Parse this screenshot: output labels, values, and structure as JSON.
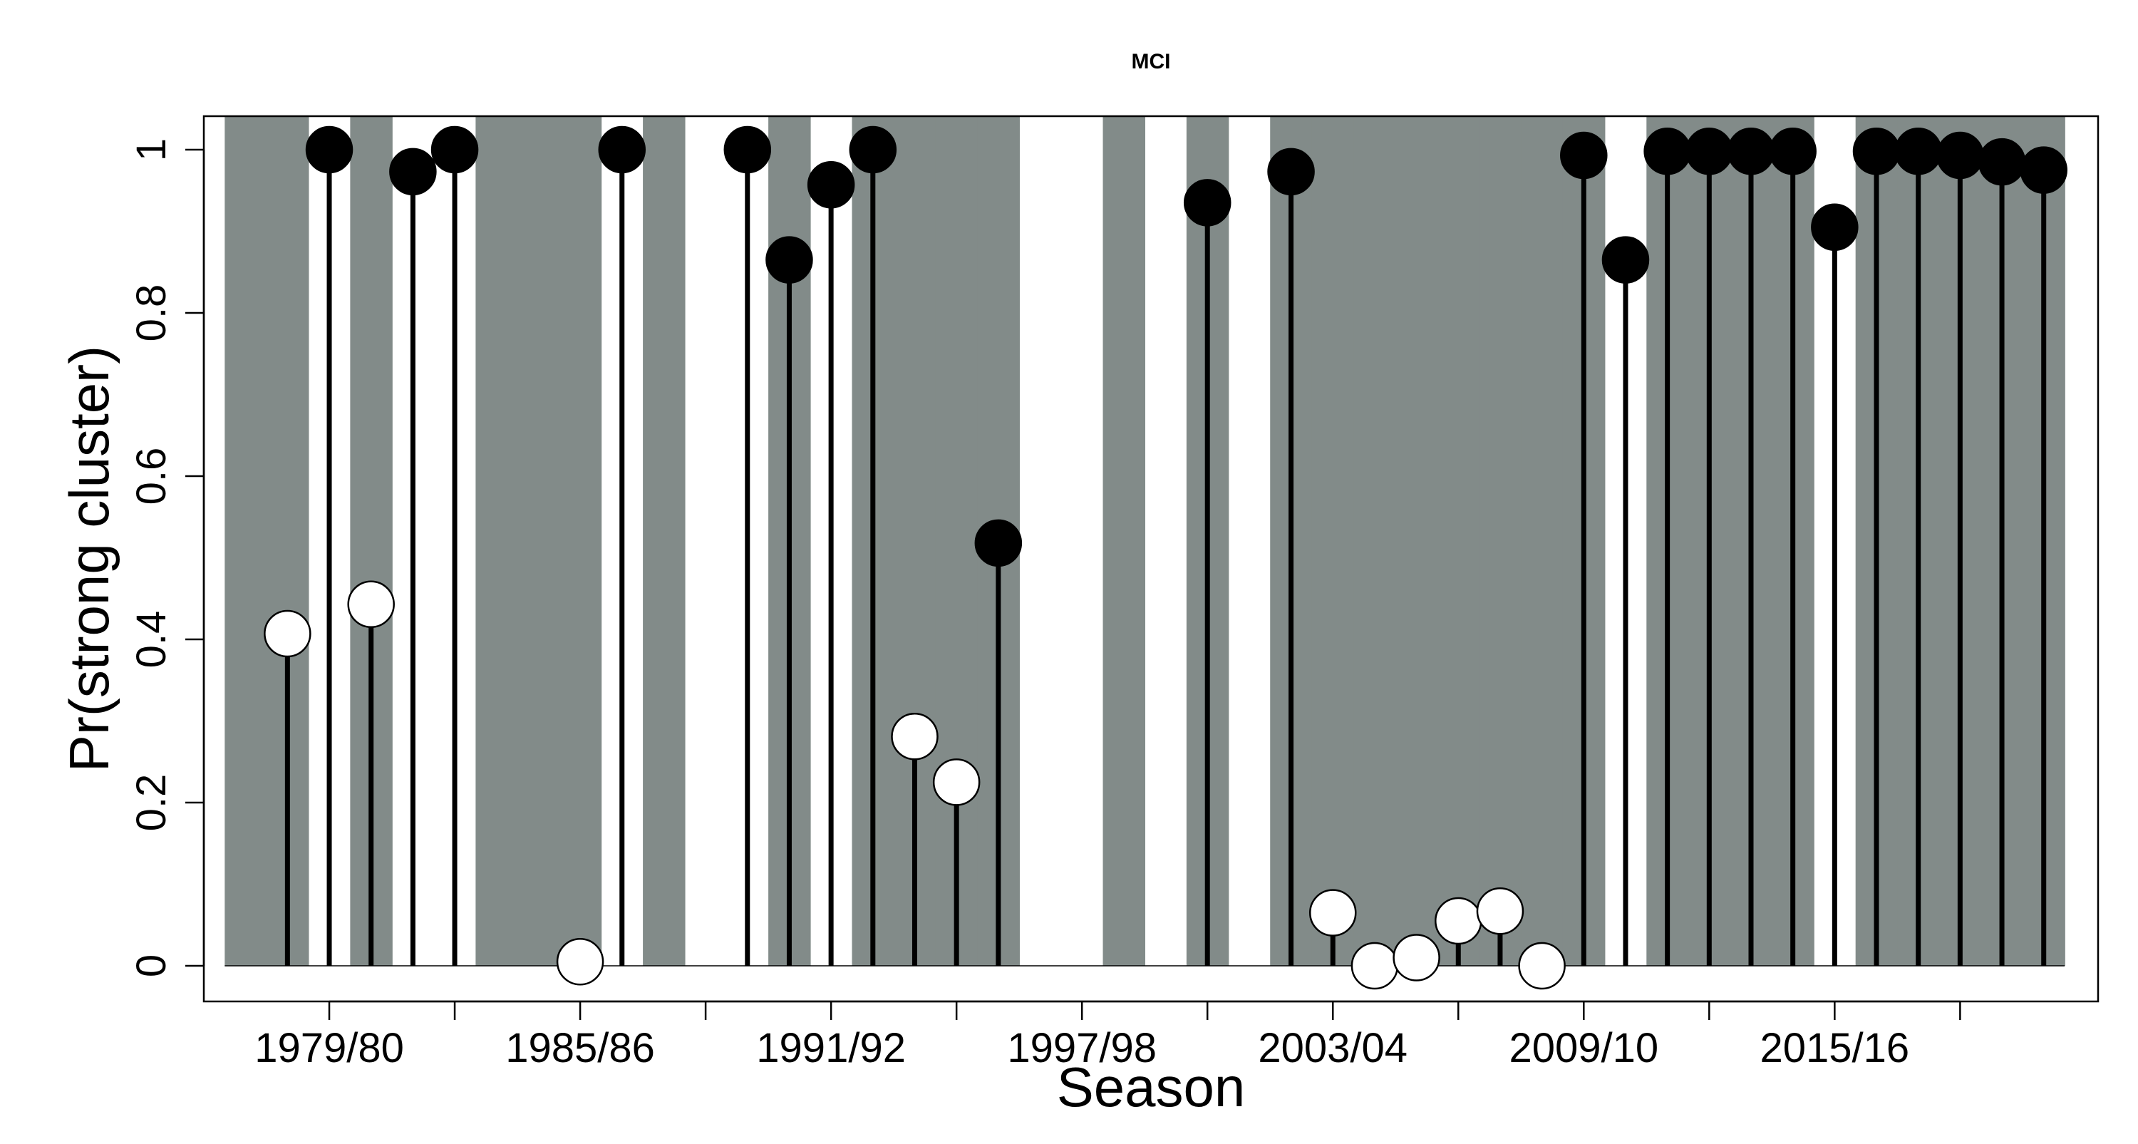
{
  "chart_data": {
    "type": "lollipop",
    "title": "MCI",
    "xlabel": "Season",
    "ylabel": "Pr(strong cluster)",
    "ylim": [
      0,
      1
    ],
    "yticks": [
      {
        "value": 0,
        "label": "0"
      },
      {
        "value": 0.2,
        "label": "0.2"
      },
      {
        "value": 0.4,
        "label": "0.4"
      },
      {
        "value": 0.6,
        "label": "0.6"
      },
      {
        "value": 0.8,
        "label": "0.8"
      },
      {
        "value": 1,
        "label": "1"
      }
    ],
    "xlim": [
      1976,
      2021.3
    ],
    "xticks": [
      {
        "value": 1979,
        "label": "1979/80"
      },
      {
        "value": 1982,
        "label": ""
      },
      {
        "value": 1985,
        "label": "1985/86"
      },
      {
        "value": 1988,
        "label": ""
      },
      {
        "value": 1991,
        "label": "1991/92"
      },
      {
        "value": 1994,
        "label": ""
      },
      {
        "value": 1997,
        "label": "1997/98"
      },
      {
        "value": 2000,
        "label": ""
      },
      {
        "value": 2003,
        "label": "2003/04"
      },
      {
        "value": 2006,
        "label": ""
      },
      {
        "value": 2009,
        "label": "2009/10"
      },
      {
        "value": 2012,
        "label": ""
      },
      {
        "value": 2015,
        "label": "2015/16"
      },
      {
        "value": 2018,
        "label": ""
      }
    ],
    "grid": false,
    "legend": "none",
    "colors": {
      "shade": "#828b89",
      "strong": "#000000",
      "weak": "#ffffff",
      "stem": "#000000"
    },
    "shaded_seasons": [
      1977,
      1978,
      1980,
      1983,
      1984,
      1985,
      1987,
      1990,
      1992,
      1993,
      1994,
      1995,
      1998,
      2000,
      2002,
      2003,
      2004,
      2005,
      2006,
      2007,
      2008,
      2009,
      2011,
      2012,
      2013,
      2014,
      2016,
      2017,
      2018,
      2019,
      2020
    ],
    "points": [
      {
        "season": 1978,
        "value": 0.407,
        "cluster": "weak"
      },
      {
        "season": 1979,
        "value": 1.0,
        "cluster": "strong"
      },
      {
        "season": 1980,
        "value": 0.443,
        "cluster": "weak"
      },
      {
        "season": 1981,
        "value": 0.973,
        "cluster": "strong"
      },
      {
        "season": 1982,
        "value": 1.0,
        "cluster": "strong"
      },
      {
        "season": 1985,
        "value": 0.005,
        "cluster": "weak"
      },
      {
        "season": 1986,
        "value": 1.0,
        "cluster": "strong"
      },
      {
        "season": 1989,
        "value": 1.0,
        "cluster": "strong"
      },
      {
        "season": 1990,
        "value": 0.865,
        "cluster": "strong"
      },
      {
        "season": 1991,
        "value": 0.957,
        "cluster": "strong"
      },
      {
        "season": 1992,
        "value": 1.0,
        "cluster": "strong"
      },
      {
        "season": 1993,
        "value": 0.281,
        "cluster": "weak"
      },
      {
        "season": 1994,
        "value": 0.225,
        "cluster": "weak"
      },
      {
        "season": 1995,
        "value": 0.518,
        "cluster": "strong"
      },
      {
        "season": 2000,
        "value": 0.935,
        "cluster": "strong"
      },
      {
        "season": 2002,
        "value": 0.973,
        "cluster": "strong"
      },
      {
        "season": 2003,
        "value": 0.065,
        "cluster": "weak"
      },
      {
        "season": 2004,
        "value": 0.0,
        "cluster": "weak"
      },
      {
        "season": 2005,
        "value": 0.01,
        "cluster": "weak"
      },
      {
        "season": 2006,
        "value": 0.055,
        "cluster": "weak"
      },
      {
        "season": 2007,
        "value": 0.067,
        "cluster": "weak"
      },
      {
        "season": 2008,
        "value": 0.0,
        "cluster": "weak"
      },
      {
        "season": 2009,
        "value": 0.993,
        "cluster": "strong"
      },
      {
        "season": 2010,
        "value": 0.865,
        "cluster": "strong"
      },
      {
        "season": 2011,
        "value": 0.998,
        "cluster": "strong"
      },
      {
        "season": 2012,
        "value": 0.998,
        "cluster": "strong"
      },
      {
        "season": 2013,
        "value": 0.998,
        "cluster": "strong"
      },
      {
        "season": 2014,
        "value": 0.998,
        "cluster": "strong"
      },
      {
        "season": 2015,
        "value": 0.905,
        "cluster": "strong"
      },
      {
        "season": 2016,
        "value": 0.998,
        "cluster": "strong"
      },
      {
        "season": 2017,
        "value": 0.998,
        "cluster": "strong"
      },
      {
        "season": 2018,
        "value": 0.993,
        "cluster": "strong"
      },
      {
        "season": 2019,
        "value": 0.985,
        "cluster": "strong"
      },
      {
        "season": 2020,
        "value": 0.975,
        "cluster": "strong"
      }
    ]
  }
}
